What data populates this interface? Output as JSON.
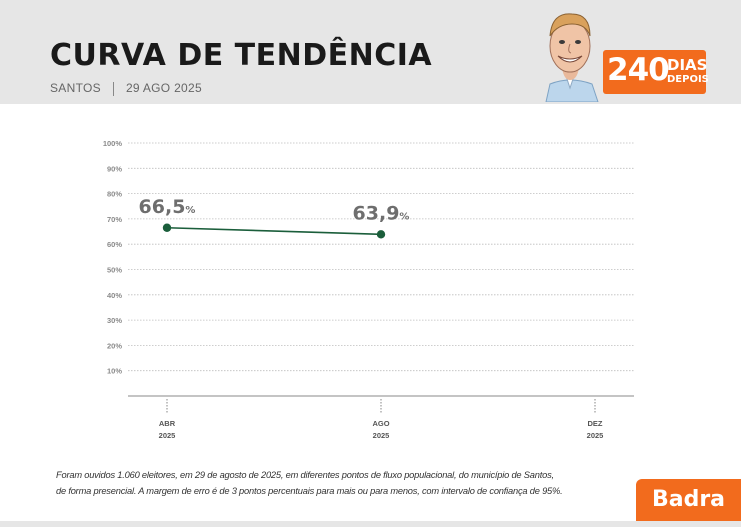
{
  "header": {
    "title": "CURVA DE TENDÊNCIA",
    "city": "SANTOS",
    "date": "29 AGO 2025",
    "days_number": "240",
    "days_word": "DIAS",
    "days_after": "DEPOIS"
  },
  "colors": {
    "accent": "#f26b1d",
    "line": "#1b5e3b",
    "header_bg": "#e6e6e6"
  },
  "chart_data": {
    "type": "line",
    "title": "",
    "y_ticks": [
      "100%",
      "90%",
      "80%",
      "70%",
      "60%",
      "50%",
      "40%",
      "30%",
      "20%",
      "10%"
    ],
    "ylim": [
      0,
      100
    ],
    "x_ticks": [
      {
        "line1": "ABR",
        "line2": "2025"
      },
      {
        "line1": "AGO",
        "line2": "2025"
      },
      {
        "line1": "DEZ",
        "line2": "2025"
      }
    ],
    "series": [
      {
        "values": [
          66.5,
          63.9
        ],
        "labels": [
          {
            "num": "66,5",
            "unit": "%"
          },
          {
            "num": "63,9",
            "unit": "%"
          }
        ]
      }
    ],
    "grid": true
  },
  "footnote": {
    "line1": "Foram ouvidos 1.060 eleitores, em 29 de agosto de 2025, em diferentes pontos de fluxo populacional, do município de Santos,",
    "line2": "de forma presencial. A margem de erro é de 3 pontos percentuais para mais ou para menos, com intervalo de confiança de 95%."
  },
  "brand": "Badra"
}
